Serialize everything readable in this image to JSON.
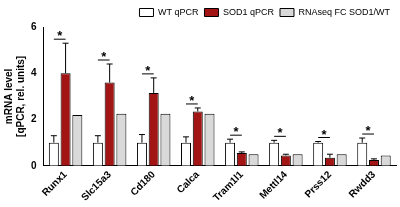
{
  "chart_data": {
    "type": "bar",
    "ylabel": "mRNA level\n[qPCR, rel. units]",
    "categories": [
      "Runx1",
      "Slc15a3",
      "Cd180",
      "Calca",
      "Tram1l1",
      "Mettl14",
      "Prss12",
      "Rwdd3"
    ],
    "series": [
      {
        "name": "WT qPCR",
        "color": "#ffffff",
        "values": [
          1.0,
          1.0,
          1.0,
          1.0,
          1.0,
          1.0,
          1.0,
          1.0
        ],
        "errors": [
          0.3,
          0.3,
          0.35,
          0.25,
          0.15,
          0.1,
          0.05,
          0.2
        ]
      },
      {
        "name": "SOD1 qPCR",
        "color": "#a31515",
        "values": [
          4.0,
          3.6,
          3.15,
          2.35,
          0.55,
          0.45,
          0.35,
          0.25
        ],
        "errors": [
          1.3,
          0.8,
          0.65,
          0.15,
          0.05,
          0.05,
          0.15,
          0.05
        ]
      },
      {
        "name": "RNAseq FC SOD1/WT",
        "color": "#d9d9d9",
        "values": [
          2.2,
          2.25,
          2.25,
          2.25,
          0.5,
          0.5,
          0.5,
          0.45
        ]
      }
    ],
    "annotations": [
      "*",
      "*",
      "*",
      "*",
      "*",
      "*",
      "*",
      "*"
    ],
    "ylim": [
      0,
      6
    ],
    "yticks": [
      0,
      2,
      4,
      6
    ],
    "grid": false,
    "legend": "upper right"
  }
}
